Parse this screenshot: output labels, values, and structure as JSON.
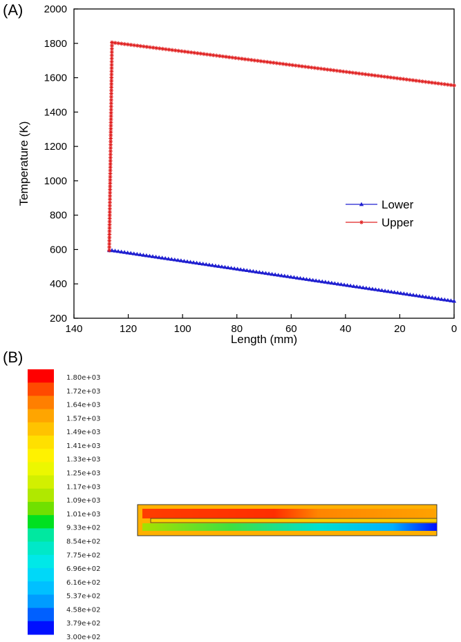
{
  "panels": {
    "a_label": "(A)",
    "b_label": "(B)"
  },
  "chart_data": {
    "type": "line",
    "title": "",
    "xlabel": "Length (mm)",
    "ylabel": "Temperature (K)",
    "xlim": [
      140,
      0
    ],
    "x_reversed": true,
    "ylim": [
      200,
      2000
    ],
    "x_ticks": [
      140,
      120,
      100,
      80,
      60,
      40,
      20,
      0
    ],
    "y_ticks": [
      200,
      400,
      600,
      800,
      1000,
      1200,
      1400,
      1600,
      1800,
      2000
    ],
    "grid": false,
    "legend_position": "right-middle",
    "series": [
      {
        "name": "Lower",
        "color": "#1f1fd0",
        "marker": "triangle",
        "x": [
          127,
          126,
          0
        ],
        "y": [
          595,
          595,
          300
        ]
      },
      {
        "name": "Upper",
        "color": "#e02020",
        "marker": "star",
        "x": [
          127,
          126,
          0
        ],
        "y": [
          595,
          1805,
          1555
        ]
      }
    ]
  },
  "contour": {
    "colorbar_labels": [
      "1.80e+03",
      "1.72e+03",
      "1.64e+03",
      "1.57e+03",
      "1.49e+03",
      "1.41e+03",
      "1.33e+03",
      "1.25e+03",
      "1.17e+03",
      "1.09e+03",
      "1.01e+03",
      "9.33e+02",
      "8.54e+02",
      "7.75e+02",
      "6.96e+02",
      "6.16e+02",
      "5.37e+02",
      "4.58e+02",
      "3.79e+02",
      "3.00e+02"
    ],
    "colorbar_colors": [
      "#ff0000",
      "#ff4a00",
      "#ff7f00",
      "#ffa500",
      "#ffc300",
      "#ffe000",
      "#fff200",
      "#ecf700",
      "#d2f000",
      "#b0e800",
      "#70e000",
      "#00e020",
      "#00e8a0",
      "#00e8c8",
      "#00e8e8",
      "#00d8f8",
      "#00c0ff",
      "#009cff",
      "#0060ff",
      "#0010ff"
    ]
  }
}
